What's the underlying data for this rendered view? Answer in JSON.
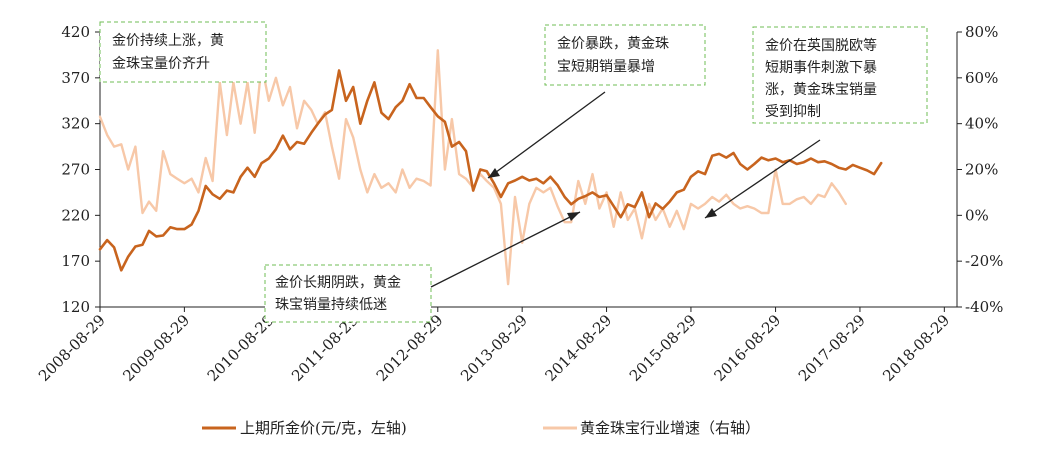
{
  "chart_data": {
    "type": "line",
    "x_tick_labels": [
      "2008-08-29",
      "2009-08-29",
      "2010-08-29",
      "2011-08-29",
      "2012-08-29",
      "2013-08-29",
      "2014-08-29",
      "2015-08-29",
      "2016-08-29",
      "2017-08-29",
      "2018-08-29"
    ],
    "y_left": {
      "ticks": [
        "420",
        "370",
        "320",
        "270",
        "220",
        "170",
        "120"
      ],
      "ylim": [
        120,
        420
      ]
    },
    "y_right": {
      "ticks": [
        "80%",
        "60%",
        "40%",
        "20%",
        "0%",
        "-20%",
        "-40%"
      ],
      "ylim": [
        -40,
        80
      ]
    },
    "series": [
      {
        "name": "上期所金价(元/克，左轴)",
        "axis": "left",
        "color": "#c8641e",
        "points": [
          [
            "2008-08-29",
            183
          ],
          [
            "2008-09-29",
            193
          ],
          [
            "2008-10-29",
            185
          ],
          [
            "2008-11-29",
            160
          ],
          [
            "2008-12-29",
            175
          ],
          [
            "2009-01-29",
            186
          ],
          [
            "2009-02-29",
            188
          ],
          [
            "2009-03-29",
            203
          ],
          [
            "2009-04-29",
            197
          ],
          [
            "2009-05-29",
            198
          ],
          [
            "2009-06-29",
            207
          ],
          [
            "2009-07-29",
            205
          ],
          [
            "2009-08-29",
            205
          ],
          [
            "2009-09-29",
            210
          ],
          [
            "2009-10-29",
            225
          ],
          [
            "2009-11-29",
            252
          ],
          [
            "2009-12-29",
            243
          ],
          [
            "2010-01-29",
            238
          ],
          [
            "2010-02-29",
            247
          ],
          [
            "2010-03-29",
            245
          ],
          [
            "2010-04-29",
            262
          ],
          [
            "2010-05-29",
            272
          ],
          [
            "2010-06-29",
            262
          ],
          [
            "2010-07-29",
            277
          ],
          [
            "2010-08-29",
            282
          ],
          [
            "2010-09-29",
            292
          ],
          [
            "2010-10-29",
            307
          ],
          [
            "2010-11-29",
            292
          ],
          [
            "2010-12-29",
            300
          ],
          [
            "2011-01-29",
            298
          ],
          [
            "2011-02-29",
            310
          ],
          [
            "2011-03-29",
            320
          ],
          [
            "2011-04-29",
            330
          ],
          [
            "2011-05-29",
            335
          ],
          [
            "2011-06-29",
            378
          ],
          [
            "2011-07-29",
            345
          ],
          [
            "2011-08-29",
            360
          ],
          [
            "2011-09-29",
            320
          ],
          [
            "2011-10-29",
            345
          ],
          [
            "2011-11-29",
            365
          ],
          [
            "2011-12-29",
            332
          ],
          [
            "2012-01-29",
            325
          ],
          [
            "2012-02-29",
            338
          ],
          [
            "2012-03-29",
            345
          ],
          [
            "2012-04-29",
            363
          ],
          [
            "2012-05-29",
            348
          ],
          [
            "2012-06-29",
            348
          ],
          [
            "2012-07-29",
            338
          ],
          [
            "2012-08-29",
            328
          ],
          [
            "2012-09-29",
            322
          ],
          [
            "2012-10-29",
            295
          ],
          [
            "2012-11-29",
            300
          ],
          [
            "2012-12-29",
            290
          ],
          [
            "2013-01-29",
            247
          ],
          [
            "2013-02-29",
            270
          ],
          [
            "2013-03-29",
            268
          ],
          [
            "2013-04-29",
            255
          ],
          [
            "2013-05-29",
            240
          ],
          [
            "2013-06-29",
            255
          ],
          [
            "2013-07-29",
            258
          ],
          [
            "2013-08-29",
            262
          ],
          [
            "2013-09-29",
            258
          ],
          [
            "2013-10-29",
            260
          ],
          [
            "2013-11-29",
            255
          ],
          [
            "2013-12-29",
            262
          ],
          [
            "2014-01-29",
            253
          ],
          [
            "2014-02-29",
            240
          ],
          [
            "2014-03-29",
            232
          ],
          [
            "2014-04-29",
            238
          ],
          [
            "2014-05-29",
            241
          ],
          [
            "2014-06-29",
            245
          ],
          [
            "2014-07-29",
            240
          ],
          [
            "2014-08-29",
            242
          ],
          [
            "2014-09-29",
            230
          ],
          [
            "2014-10-29",
            218
          ],
          [
            "2014-11-29",
            232
          ],
          [
            "2014-12-29",
            229
          ],
          [
            "2015-01-29",
            245
          ],
          [
            "2015-02-29",
            218
          ],
          [
            "2015-03-29",
            233
          ],
          [
            "2015-04-29",
            227
          ],
          [
            "2015-05-29",
            235
          ],
          [
            "2015-06-29",
            245
          ],
          [
            "2015-07-29",
            248
          ],
          [
            "2015-08-29",
            262
          ],
          [
            "2015-09-29",
            268
          ],
          [
            "2015-10-29",
            265
          ],
          [
            "2015-11-29",
            285
          ],
          [
            "2015-12-29",
            287
          ],
          [
            "2016-01-29",
            283
          ],
          [
            "2016-02-29",
            288
          ],
          [
            "2016-03-29",
            276
          ],
          [
            "2016-04-29",
            270
          ],
          [
            "2016-05-29",
            276
          ],
          [
            "2016-06-29",
            283
          ],
          [
            "2016-07-29",
            280
          ],
          [
            "2016-08-29",
            282
          ],
          [
            "2016-09-29",
            278
          ],
          [
            "2016-10-29",
            280
          ],
          [
            "2016-11-29",
            276
          ],
          [
            "2016-12-29",
            278
          ],
          [
            "2017-01-29",
            282
          ],
          [
            "2017-02-29",
            278
          ],
          [
            "2017-03-29",
            279
          ],
          [
            "2017-04-29",
            276
          ],
          [
            "2017-05-29",
            272
          ],
          [
            "2017-06-29",
            270
          ],
          [
            "2017-07-29",
            275
          ],
          [
            "2017-08-29",
            272
          ],
          [
            "2017-09-29",
            269
          ],
          [
            "2017-10-29",
            265
          ],
          [
            "2017-11-29",
            277
          ]
        ]
      },
      {
        "name": "黄金珠宝行业增速（右轴）",
        "axis": "right",
        "color": "#f7c8a8",
        "points": [
          [
            "2008-08-29",
            43
          ],
          [
            "2008-09-29",
            35
          ],
          [
            "2008-10-29",
            30
          ],
          [
            "2008-11-29",
            31
          ],
          [
            "2008-12-29",
            20
          ],
          [
            "2009-01-29",
            30
          ],
          [
            "2009-02-29",
            1
          ],
          [
            "2009-03-29",
            6
          ],
          [
            "2009-04-29",
            2
          ],
          [
            "2009-05-29",
            28
          ],
          [
            "2009-06-29",
            18
          ],
          [
            "2009-07-29",
            16
          ],
          [
            "2009-08-29",
            14
          ],
          [
            "2009-09-29",
            16
          ],
          [
            "2009-10-29",
            10
          ],
          [
            "2009-11-29",
            25
          ],
          [
            "2009-12-29",
            15
          ],
          [
            "2010-01-29",
            58
          ],
          [
            "2010-02-29",
            35
          ],
          [
            "2010-03-29",
            58
          ],
          [
            "2010-04-29",
            40
          ],
          [
            "2010-05-29",
            58
          ],
          [
            "2010-06-29",
            36
          ],
          [
            "2010-07-29",
            66
          ],
          [
            "2010-08-29",
            50
          ],
          [
            "2010-09-29",
            60
          ],
          [
            "2010-10-29",
            48
          ],
          [
            "2010-11-29",
            56
          ],
          [
            "2010-12-29",
            38
          ],
          [
            "2011-01-29",
            50
          ],
          [
            "2011-02-29",
            46
          ],
          [
            "2011-03-29",
            40
          ],
          [
            "2011-04-29",
            45
          ],
          [
            "2011-05-29",
            30
          ],
          [
            "2011-06-29",
            16
          ],
          [
            "2011-07-29",
            42
          ],
          [
            "2011-08-29",
            34
          ],
          [
            "2011-09-29",
            20
          ],
          [
            "2011-10-29",
            10
          ],
          [
            "2011-11-29",
            18
          ],
          [
            "2011-12-29",
            12
          ],
          [
            "2012-01-29",
            14
          ],
          [
            "2012-02-29",
            10
          ],
          [
            "2012-03-29",
            20
          ],
          [
            "2012-04-29",
            12
          ],
          [
            "2012-05-29",
            16
          ],
          [
            "2012-06-29",
            15
          ],
          [
            "2012-07-29",
            13
          ],
          [
            "2012-08-29",
            72
          ],
          [
            "2012-09-29",
            20
          ],
          [
            "2012-10-29",
            42
          ],
          [
            "2012-11-29",
            18
          ],
          [
            "2012-12-29",
            16
          ],
          [
            "2013-01-29",
            12
          ],
          [
            "2013-02-29",
            18
          ],
          [
            "2013-03-29",
            15
          ],
          [
            "2013-04-29",
            12
          ],
          [
            "2013-05-29",
            5
          ],
          [
            "2013-06-29",
            -30
          ],
          [
            "2013-07-29",
            8
          ],
          [
            "2013-08-29",
            -12
          ],
          [
            "2013-09-29",
            5
          ],
          [
            "2013-10-29",
            12
          ],
          [
            "2013-11-29",
            10
          ],
          [
            "2013-12-29",
            12
          ],
          [
            "2014-01-29",
            4
          ],
          [
            "2014-02-29",
            -3
          ],
          [
            "2014-03-29",
            -3
          ],
          [
            "2014-04-29",
            15
          ],
          [
            "2014-05-29",
            5
          ],
          [
            "2014-06-29",
            18
          ],
          [
            "2014-07-29",
            3
          ],
          [
            "2014-08-29",
            10
          ],
          [
            "2014-09-29",
            -5
          ],
          [
            "2014-10-29",
            10
          ],
          [
            "2014-11-29",
            -2
          ],
          [
            "2014-12-29",
            3
          ],
          [
            "2015-01-29",
            -10
          ],
          [
            "2015-02-29",
            5
          ],
          [
            "2015-03-29",
            -2
          ],
          [
            "2015-04-29",
            3
          ],
          [
            "2015-05-29",
            -5
          ],
          [
            "2015-06-29",
            2
          ],
          [
            "2015-07-29",
            -6
          ],
          [
            "2015-08-29",
            5
          ],
          [
            "2015-09-29",
            3
          ],
          [
            "2015-10-29",
            5
          ],
          [
            "2015-11-29",
            8
          ],
          [
            "2015-12-29",
            6
          ],
          [
            "2016-01-29",
            9
          ],
          [
            "2016-02-29",
            5
          ],
          [
            "2016-03-29",
            3
          ],
          [
            "2016-04-29",
            4
          ],
          [
            "2016-05-29",
            3
          ],
          [
            "2016-06-29",
            1
          ],
          [
            "2016-07-29",
            1
          ],
          [
            "2016-08-29",
            20
          ],
          [
            "2016-09-29",
            5
          ],
          [
            "2016-10-29",
            5
          ],
          [
            "2016-11-29",
            7
          ],
          [
            "2016-12-29",
            8
          ],
          [
            "2017-01-29",
            5
          ],
          [
            "2017-02-29",
            9
          ],
          [
            "2017-03-29",
            8
          ],
          [
            "2017-04-29",
            14
          ],
          [
            "2017-05-29",
            10
          ],
          [
            "2017-06-29",
            5
          ]
        ]
      }
    ],
    "annotations": [
      {
        "lines": [
          "金价持续上涨，黄",
          "金珠宝量价齐升"
        ]
      },
      {
        "lines": [
          "金价暴跌，黄金珠",
          "宝短期销量暴增"
        ]
      },
      {
        "lines": [
          "金价在英国脱欧等",
          "短期事件刺激下暴",
          "涨，黄金珠宝销量",
          "受到抑制"
        ]
      },
      {
        "lines": [
          "金价长期阴跌，黄金",
          "珠宝销量持续低迷"
        ]
      }
    ],
    "legend": [
      "上期所金价(元/克，左轴)",
      "黄金珠宝行业增速（右轴）"
    ]
  }
}
